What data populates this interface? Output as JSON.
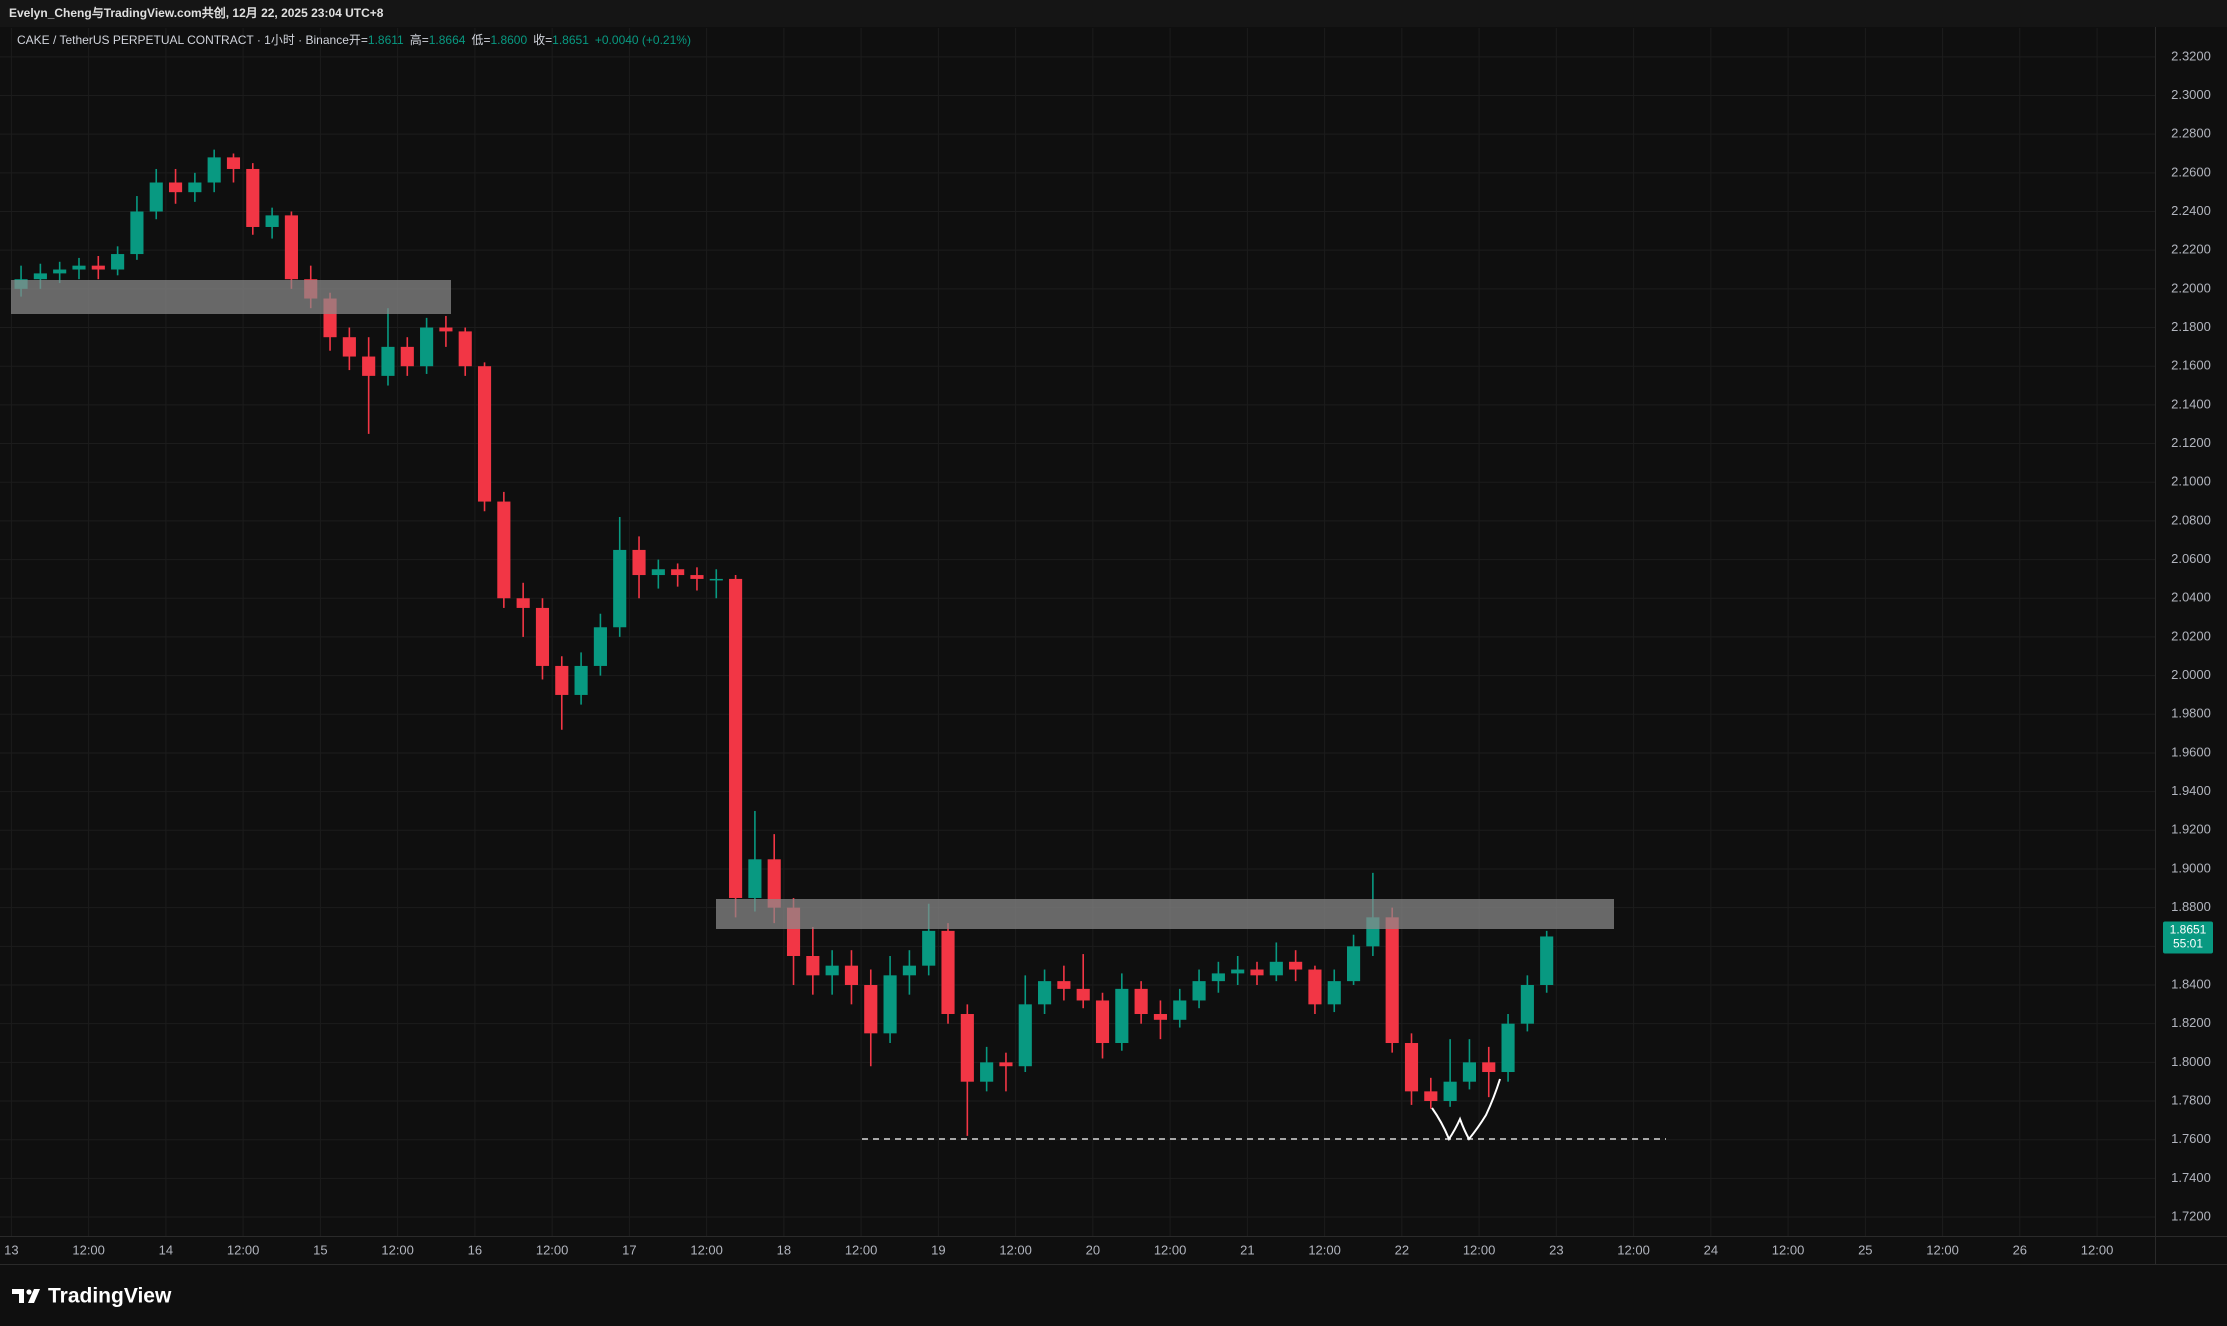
{
  "header": {
    "attribution": "Evelyn_Cheng与TradingView.com共创, 12月 22, 2025 23:04 UTC+8"
  },
  "footer": {
    "brand": "TradingView"
  },
  "chart_data": {
    "type": "candlestick",
    "symbol": "CAKE / TetherUS PERPETUAL CONTRACT · 1小时 · Binance",
    "ohlc_legend": [
      {
        "label": "开=",
        "value": "1.8611"
      },
      {
        "label": "高=",
        "value": "1.8664"
      },
      {
        "label": "低=",
        "value": "1.8600"
      },
      {
        "label": "收=",
        "value": "1.8651"
      }
    ],
    "change": "+0.0040 (+0.21%)",
    "up_color": "#089981",
    "down_color": "#f23645",
    "grid": true,
    "last_price": 1.8651,
    "countdown": "55:01",
    "xlim": [
      0,
      333
    ],
    "ylim": [
      1.7102,
      2.3349
    ],
    "xticks": [
      {
        "value": 0,
        "label": "13"
      },
      {
        "value": 12,
        "label": "12:00"
      },
      {
        "value": 24,
        "label": "14"
      },
      {
        "value": 36,
        "label": "12:00"
      },
      {
        "value": 48,
        "label": "15"
      },
      {
        "value": 60,
        "label": "12:00"
      },
      {
        "value": 72,
        "label": "16"
      },
      {
        "value": 84,
        "label": "12:00"
      },
      {
        "value": 96,
        "label": "17"
      },
      {
        "value": 108,
        "label": "12:00"
      },
      {
        "value": 120,
        "label": "18"
      },
      {
        "value": 132,
        "label": "12:00"
      },
      {
        "value": 144,
        "label": "19"
      },
      {
        "value": 156,
        "label": "12:00"
      },
      {
        "value": 168,
        "label": "20"
      },
      {
        "value": 180,
        "label": "12:00"
      },
      {
        "value": 192,
        "label": "21"
      },
      {
        "value": 204,
        "label": "12:00"
      },
      {
        "value": 216,
        "label": "22"
      },
      {
        "value": 228,
        "label": "12:00"
      },
      {
        "value": 240,
        "label": "23"
      },
      {
        "value": 252,
        "label": "12:00"
      },
      {
        "value": 264,
        "label": "24"
      },
      {
        "value": 276,
        "label": "12:00"
      },
      {
        "value": 288,
        "label": "25"
      },
      {
        "value": 300,
        "label": "12:00"
      },
      {
        "value": 312,
        "label": "26"
      },
      {
        "value": 324,
        "label": "12:00"
      }
    ],
    "yticks": [
      {
        "value": 1.72,
        "label": "1.7200"
      },
      {
        "value": 1.74,
        "label": "1.7400"
      },
      {
        "value": 1.76,
        "label": "1.7600"
      },
      {
        "value": 1.78,
        "label": "1.7800"
      },
      {
        "value": 1.8,
        "label": "1.8000"
      },
      {
        "value": 1.82,
        "label": "1.8200"
      },
      {
        "value": 1.84,
        "label": "1.8400"
      },
      {
        "value": 1.86,
        "label": "1.8600"
      },
      {
        "value": 1.88,
        "label": "1.8800"
      },
      {
        "value": 1.9,
        "label": "1.9000"
      },
      {
        "value": 1.92,
        "label": "1.9200"
      },
      {
        "value": 1.94,
        "label": "1.9400"
      },
      {
        "value": 1.96,
        "label": "1.9600"
      },
      {
        "value": 1.98,
        "label": "1.9800"
      },
      {
        "value": 2.0,
        "label": "2.0000"
      },
      {
        "value": 2.02,
        "label": "2.0200"
      },
      {
        "value": 2.04,
        "label": "2.0400"
      },
      {
        "value": 2.06,
        "label": "2.0600"
      },
      {
        "value": 2.08,
        "label": "2.0800"
      },
      {
        "value": 2.1,
        "label": "2.1000"
      },
      {
        "value": 2.12,
        "label": "2.1200"
      },
      {
        "value": 2.14,
        "label": "2.1400"
      },
      {
        "value": 2.16,
        "label": "2.1600"
      },
      {
        "value": 2.18,
        "label": "2.1800"
      },
      {
        "value": 2.2,
        "label": "2.2000"
      },
      {
        "value": 2.22,
        "label": "2.2200"
      },
      {
        "value": 2.24,
        "label": "2.2400"
      },
      {
        "value": 2.26,
        "label": "2.2600"
      },
      {
        "value": 2.28,
        "label": "2.2800"
      },
      {
        "value": 2.3,
        "label": "2.3000"
      },
      {
        "value": 2.32,
        "label": "2.3200"
      }
    ],
    "x": [
      1.5,
      4.5,
      7.5,
      10.5,
      13.5,
      16.5,
      19.5,
      22.5,
      25.5,
      28.5,
      31.5,
      34.5,
      37.5,
      40.5,
      43.5,
      46.5,
      49.5,
      52.5,
      55.5,
      58.5,
      61.5,
      64.5,
      67.5,
      70.5,
      73.5,
      76.5,
      79.5,
      82.5,
      85.5,
      88.5,
      91.5,
      94.5,
      97.5,
      100.5,
      103.5,
      106.5,
      109.5,
      112.5,
      115.5,
      118.5,
      121.5,
      124.5,
      127.5,
      130.5,
      133.5,
      136.5,
      139.5,
      142.5,
      145.5,
      148.5,
      151.5,
      154.5,
      157.5,
      160.5,
      163.5,
      166.5,
      169.5,
      172.5,
      175.5,
      178.5,
      181.5,
      184.5,
      187.5,
      190.5,
      193.5,
      196.5,
      199.5,
      202.5,
      205.5,
      208.5,
      211.5,
      214.5,
      217.5,
      220.5,
      223.5,
      226.5,
      229.5,
      232.5,
      235.5,
      238.5
    ],
    "candles": [
      [
        2.2,
        2.212,
        2.196,
        2.205
      ],
      [
        2.205,
        2.213,
        2.2,
        2.208
      ],
      [
        2.208,
        2.214,
        2.203,
        2.21
      ],
      [
        2.21,
        2.216,
        2.205,
        2.212
      ],
      [
        2.212,
        2.217,
        2.205,
        2.21
      ],
      [
        2.21,
        2.222,
        2.207,
        2.218
      ],
      [
        2.218,
        2.248,
        2.215,
        2.24
      ],
      [
        2.24,
        2.262,
        2.236,
        2.255
      ],
      [
        2.255,
        2.262,
        2.244,
        2.25
      ],
      [
        2.25,
        2.26,
        2.245,
        2.255
      ],
      [
        2.255,
        2.272,
        2.25,
        2.268
      ],
      [
        2.268,
        2.27,
        2.255,
        2.262
      ],
      [
        2.262,
        2.265,
        2.228,
        2.232
      ],
      [
        2.232,
        2.242,
        2.226,
        2.238
      ],
      [
        2.238,
        2.24,
        2.2,
        2.205
      ],
      [
        2.205,
        2.212,
        2.19,
        2.195
      ],
      [
        2.195,
        2.198,
        2.168,
        2.175
      ],
      [
        2.175,
        2.18,
        2.158,
        2.165
      ],
      [
        2.165,
        2.175,
        2.125,
        2.155
      ],
      [
        2.155,
        2.19,
        2.15,
        2.17
      ],
      [
        2.17,
        2.175,
        2.155,
        2.16
      ],
      [
        2.16,
        2.185,
        2.156,
        2.18
      ],
      [
        2.18,
        2.186,
        2.17,
        2.178
      ],
      [
        2.178,
        2.18,
        2.155,
        2.16
      ],
      [
        2.16,
        2.162,
        2.085,
        2.09
      ],
      [
        2.09,
        2.095,
        2.035,
        2.04
      ],
      [
        2.04,
        2.048,
        2.02,
        2.035
      ],
      [
        2.035,
        2.04,
        1.998,
        2.005
      ],
      [
        2.005,
        2.01,
        1.972,
        1.99
      ],
      [
        1.99,
        2.012,
        1.985,
        2.005
      ],
      [
        2.005,
        2.032,
        2.0,
        2.025
      ],
      [
        2.025,
        2.082,
        2.02,
        2.065
      ],
      [
        2.065,
        2.072,
        2.04,
        2.052
      ],
      [
        2.052,
        2.06,
        2.045,
        2.055
      ],
      [
        2.055,
        2.058,
        2.046,
        2.052
      ],
      [
        2.052,
        2.056,
        2.044,
        2.05
      ],
      [
        2.05,
        2.055,
        2.04,
        2.05
      ],
      [
        2.05,
        2.052,
        1.875,
        1.885
      ],
      [
        1.885,
        1.93,
        1.878,
        1.905
      ],
      [
        1.905,
        1.918,
        1.872,
        1.88
      ],
      [
        1.88,
        1.885,
        1.84,
        1.855
      ],
      [
        1.855,
        1.87,
        1.835,
        1.845
      ],
      [
        1.845,
        1.858,
        1.835,
        1.85
      ],
      [
        1.85,
        1.858,
        1.83,
        1.84
      ],
      [
        1.84,
        1.848,
        1.798,
        1.815
      ],
      [
        1.815,
        1.855,
        1.81,
        1.845
      ],
      [
        1.845,
        1.858,
        1.835,
        1.85
      ],
      [
        1.85,
        1.882,
        1.845,
        1.868
      ],
      [
        1.868,
        1.872,
        1.82,
        1.825
      ],
      [
        1.825,
        1.83,
        1.762,
        1.79
      ],
      [
        1.79,
        1.808,
        1.785,
        1.8
      ],
      [
        1.8,
        1.805,
        1.785,
        1.798
      ],
      [
        1.798,
        1.845,
        1.795,
        1.83
      ],
      [
        1.83,
        1.848,
        1.825,
        1.842
      ],
      [
        1.842,
        1.85,
        1.832,
        1.838
      ],
      [
        1.838,
        1.856,
        1.828,
        1.832
      ],
      [
        1.832,
        1.836,
        1.802,
        1.81
      ],
      [
        1.81,
        1.846,
        1.806,
        1.838
      ],
      [
        1.838,
        1.842,
        1.82,
        1.825
      ],
      [
        1.825,
        1.832,
        1.812,
        1.822
      ],
      [
        1.822,
        1.838,
        1.818,
        1.832
      ],
      [
        1.832,
        1.848,
        1.828,
        1.842
      ],
      [
        1.842,
        1.852,
        1.836,
        1.846
      ],
      [
        1.846,
        1.855,
        1.84,
        1.848
      ],
      [
        1.848,
        1.852,
        1.84,
        1.845
      ],
      [
        1.845,
        1.862,
        1.842,
        1.852
      ],
      [
        1.852,
        1.858,
        1.842,
        1.848
      ],
      [
        1.848,
        1.85,
        1.825,
        1.83
      ],
      [
        1.83,
        1.848,
        1.826,
        1.842
      ],
      [
        1.842,
        1.866,
        1.84,
        1.86
      ],
      [
        1.86,
        1.898,
        1.855,
        1.875
      ],
      [
        1.875,
        1.88,
        1.805,
        1.81
      ],
      [
        1.81,
        1.815,
        1.778,
        1.785
      ],
      [
        1.785,
        1.792,
        1.776,
        1.78
      ],
      [
        1.78,
        1.812,
        1.777,
        1.79
      ],
      [
        1.79,
        1.812,
        1.786,
        1.8
      ],
      [
        1.8,
        1.808,
        1.782,
        1.795
      ],
      [
        1.795,
        1.825,
        1.79,
        1.82
      ],
      [
        1.82,
        1.845,
        1.816,
        1.84
      ],
      [
        1.84,
        1.868,
        1.836,
        1.8651
      ]
    ]
  }
}
